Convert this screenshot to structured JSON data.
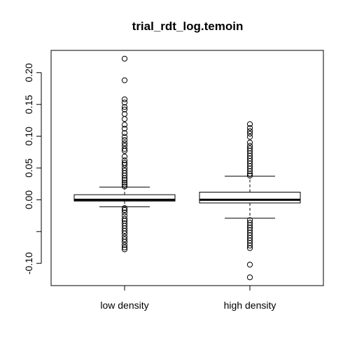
{
  "chart_data": {
    "type": "boxplot",
    "title": "trial_rdt_log.temoin",
    "xlabel": "",
    "ylabel": "",
    "ylim": [
      -0.135,
      0.235
    ],
    "y_ticks": [
      -0.1,
      -0.05,
      0.0,
      0.05,
      0.1,
      0.15,
      0.2
    ],
    "y_tick_labels": [
      "-0.10",
      "",
      "0.00",
      "0.05",
      "0.10",
      "0.15",
      "0.20"
    ],
    "categories": [
      "low density",
      "high density"
    ],
    "grid": false,
    "legend": "none",
    "series": [
      {
        "category": "low density",
        "whisker_low": -0.011,
        "q1": -0.002,
        "median": 0.0,
        "q3": 0.008,
        "whisker_high": 0.02,
        "outliers": [
          0.222,
          0.188,
          0.158,
          0.153,
          0.146,
          0.142,
          0.135,
          0.127,
          0.118,
          0.112,
          0.105,
          0.099,
          0.094,
          0.089,
          0.085,
          0.08,
          0.077,
          0.068,
          0.062,
          0.058,
          0.055,
          0.05,
          0.046,
          0.042,
          0.038,
          0.034,
          0.031,
          0.027,
          0.024,
          0.021,
          -0.013,
          -0.016,
          -0.02,
          -0.025,
          -0.03,
          -0.033,
          -0.037,
          -0.041,
          -0.045,
          -0.049,
          -0.053,
          -0.058,
          -0.062,
          -0.066,
          -0.071,
          -0.075,
          -0.078
        ]
      },
      {
        "category": "high density",
        "whisker_low": -0.029,
        "q1": -0.005,
        "median": 0.0,
        "q3": 0.012,
        "whisker_high": 0.037,
        "outliers": [
          0.119,
          0.113,
          0.108,
          0.104,
          0.099,
          0.09,
          0.085,
          0.081,
          0.077,
          0.073,
          0.069,
          0.065,
          0.061,
          0.057,
          0.053,
          0.049,
          0.045,
          0.041,
          0.038,
          -0.032,
          -0.036,
          -0.04,
          -0.044,
          -0.048,
          -0.052,
          -0.056,
          -0.06,
          -0.064,
          -0.068,
          -0.072,
          -0.076,
          -0.102,
          -0.122
        ]
      }
    ]
  }
}
